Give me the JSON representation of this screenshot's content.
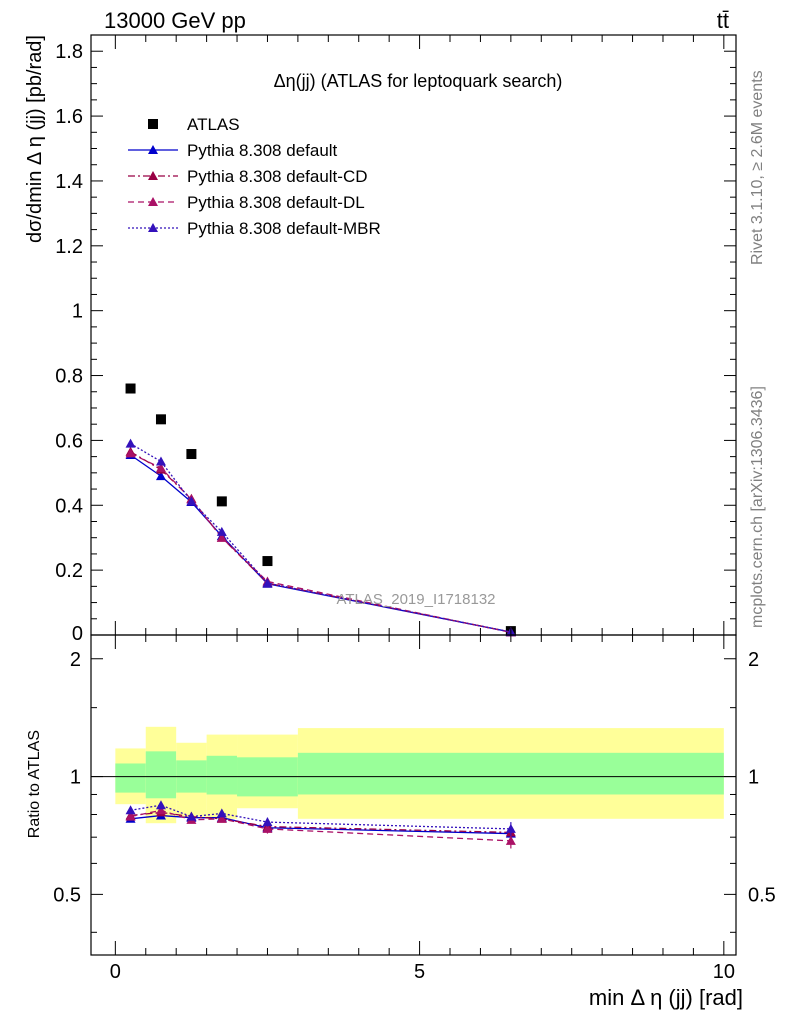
{
  "header": {
    "energy_label": "13000 GeV pp",
    "process_label": "tt̄",
    "side_rivet": "Rivet 3.1.10, ≥ 2.6M events",
    "side_source": "mcplots.cern.ch [arXiv:1306.3436]",
    "watermark": "ATLAS_2019_I1718132"
  },
  "chart_data": [
    {
      "type": "scatter",
      "panel": "main",
      "title": "Δη(jj) (ATLAS for leptoquark search)",
      "xlabel": "min Δ η (jj) [rad]",
      "ylabel": "dσ/dmin Δ η (jj) [pb/rad]",
      "xlim": [
        -0.4,
        10.2
      ],
      "ylim": [
        0,
        1.85
      ],
      "x_ticks": [
        0,
        5,
        10
      ],
      "y_ticks": [
        0.2,
        0.4,
        0.6,
        0.8,
        1,
        1.2,
        1.4,
        1.6,
        1.8
      ],
      "y_tick_labels": [
        "0.2",
        "0.4",
        "0.6",
        "0.8",
        "1",
        "1.2",
        "1.4",
        "1.6",
        "1.8"
      ],
      "y_zero_label": "0",
      "legend_position": "top-left",
      "x": [
        0.25,
        0.75,
        1.25,
        1.75,
        2.5,
        6.5
      ],
      "series": [
        {
          "name": "ATLAS",
          "color": "#000000",
          "style": "data",
          "values": [
            0.76,
            0.665,
            0.558,
            0.412,
            0.228,
            0.012
          ]
        },
        {
          "name": "Pythia 8.308 default",
          "color": "#0000cc",
          "style": "solid",
          "values": [
            0.555,
            0.49,
            0.41,
            0.305,
            0.158,
            0.009
          ]
        },
        {
          "name": "Pythia 8.308 default-CD",
          "color": "#990044",
          "style": "dashdot",
          "values": [
            0.565,
            0.51,
            0.42,
            0.3,
            0.16,
            0.009
          ]
        },
        {
          "name": "Pythia 8.308 default-DL",
          "color": "#aa1166",
          "style": "dashed",
          "values": [
            0.56,
            0.515,
            0.418,
            0.3,
            0.165,
            0.008
          ]
        },
        {
          "name": "Pythia 8.308 default-MBR",
          "color": "#3311bb",
          "style": "dotted",
          "values": [
            0.59,
            0.535,
            0.412,
            0.318,
            0.16,
            0.009
          ]
        }
      ]
    },
    {
      "type": "scatter",
      "panel": "ratio",
      "ylabel": "Ratio to ATLAS",
      "ylim": [
        0.35,
        2.3
      ],
      "y_ticks": [
        0.5,
        1,
        2
      ],
      "y_tick_labels": [
        "0.5",
        "1",
        "2"
      ],
      "band_edges": [
        0,
        0.5,
        1,
        1.5,
        2,
        3,
        10
      ],
      "band_inner": [
        [
          0.91,
          1.08
        ],
        [
          0.88,
          1.16
        ],
        [
          0.91,
          1.1
        ],
        [
          0.9,
          1.13
        ],
        [
          0.89,
          1.12
        ],
        [
          0.9,
          1.15
        ]
      ],
      "band_outer": [
        [
          0.85,
          1.18
        ],
        [
          0.76,
          1.34
        ],
        [
          0.79,
          1.22
        ],
        [
          0.78,
          1.28
        ],
        [
          0.83,
          1.28
        ],
        [
          0.78,
          1.33
        ]
      ],
      "band_colors": {
        "inner": "#99ff99",
        "outer": "#ffff99"
      },
      "x": [
        0.25,
        0.75,
        1.25,
        1.75,
        2.5,
        6.5
      ],
      "series": [
        {
          "name": "Pythia 8.308 default",
          "color": "#0000cc",
          "style": "solid",
          "values": [
            0.78,
            0.795,
            0.785,
            0.785,
            0.74,
            0.715
          ]
        },
        {
          "name": "Pythia 8.308 default-CD",
          "color": "#990044",
          "style": "dashdot",
          "values": [
            0.795,
            0.81,
            0.79,
            0.78,
            0.745,
            0.72
          ]
        },
        {
          "name": "Pythia 8.308 default-DL",
          "color": "#aa1166",
          "style": "dashed",
          "values": [
            0.79,
            0.82,
            0.775,
            0.78,
            0.735,
            0.685
          ]
        },
        {
          "name": "Pythia 8.308 default-MBR",
          "color": "#3311bb",
          "style": "dotted",
          "values": [
            0.82,
            0.845,
            0.79,
            0.805,
            0.765,
            0.735
          ]
        }
      ],
      "error": [
        0.015,
        0.015,
        0.015,
        0.015,
        0.02,
        0.03
      ]
    }
  ]
}
